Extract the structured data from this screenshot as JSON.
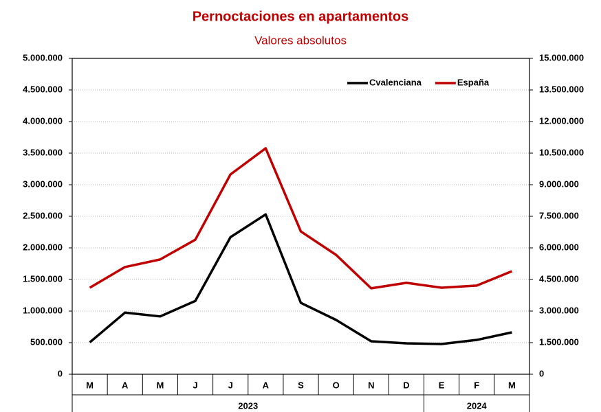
{
  "chart_data": {
    "type": "line",
    "title": "Pernoctaciones en apartamentos",
    "subtitle": "Valores absolutos",
    "category_groups": [
      {
        "label": "2023",
        "categories": [
          "M",
          "A",
          "M",
          "J",
          "J",
          "A",
          "S",
          "O",
          "N",
          "D"
        ]
      },
      {
        "label": "2024",
        "categories": [
          "E",
          "F",
          "M"
        ]
      }
    ],
    "series": [
      {
        "name": "Cvalenciana",
        "color": "#000000",
        "axis": "y",
        "values": [
          505000,
          975000,
          915000,
          1160000,
          2170000,
          2530000,
          1130000,
          860000,
          522000,
          489000,
          478000,
          543000,
          663000
        ]
      },
      {
        "name": "España",
        "color": "#c00000",
        "axis": "y2",
        "values": [
          4110000,
          5090000,
          5450000,
          6390000,
          9490000,
          10730000,
          6780000,
          5670000,
          4080000,
          4340000,
          4110000,
          4210000,
          4890000
        ]
      }
    ],
    "ylim": [
      0,
      5000000
    ],
    "yticks": [
      0,
      {
        "value": 500000,
        "label": "500.000"
      },
      {
        "value": 1000000,
        "label": "1.000.000"
      },
      {
        "value": 1500000,
        "label": "1.500.000"
      },
      {
        "value": 2000000,
        "label": "2.000.000"
      },
      {
        "value": 2500000,
        "label": "2.500.000"
      },
      {
        "value": 3000000,
        "label": "3.000.000"
      },
      {
        "value": 3500000,
        "label": "3.500.000"
      },
      {
        "value": 4000000,
        "label": "4.000.000"
      },
      {
        "value": 4500000,
        "label": "4.500.000"
      },
      {
        "value": 5000000,
        "label": "5.000.000"
      }
    ],
    "y2lim": [
      0,
      15000000
    ],
    "y2ticks": [
      0,
      {
        "value": 1500000,
        "label": "1.500.000"
      },
      {
        "value": 3000000,
        "label": "3.000.000"
      },
      {
        "value": 4500000,
        "label": "4.500.000"
      },
      {
        "value": 6000000,
        "label": "6.000.000"
      },
      {
        "value": 7500000,
        "label": "7.500.000"
      },
      {
        "value": 9000000,
        "label": "9.000.000"
      },
      {
        "value": 10500000,
        "label": "10.500.000"
      },
      {
        "value": 12000000,
        "label": "12.000.000"
      },
      {
        "value": 13500000,
        "label": "13.500.000"
      },
      {
        "value": 15000000,
        "label": "15.000.000"
      }
    ],
    "grid": true,
    "legend": "top-right"
  }
}
